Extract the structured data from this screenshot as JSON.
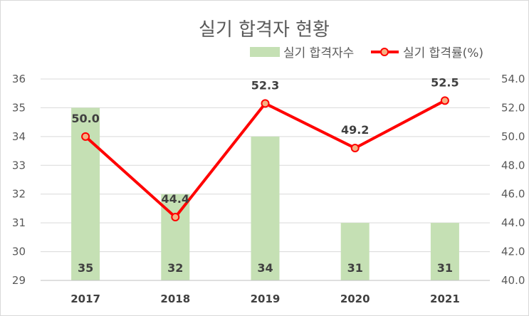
{
  "chart_data": {
    "type": "bar",
    "title": "실기 합격자 현황",
    "categories": [
      "2017",
      "2018",
      "2019",
      "2020",
      "2021"
    ],
    "series": [
      {
        "name": "실기 합격자수",
        "type": "bar",
        "axis": "left",
        "values": [
          35,
          32,
          34,
          31,
          31
        ],
        "color": "#c5e0b4"
      },
      {
        "name": "실기 합격률(%)",
        "type": "line",
        "axis": "right",
        "values": [
          50.0,
          44.4,
          52.3,
          49.2,
          52.5
        ],
        "color": "#ff0000",
        "marker_color": "#f4b183"
      }
    ],
    "y_left": {
      "min": 29,
      "max": 36,
      "ticks": [
        "29",
        "30",
        "31",
        "32",
        "33",
        "34",
        "35",
        "36"
      ]
    },
    "y_right": {
      "min": 40,
      "max": 54,
      "ticks": [
        "40.0",
        "42.0",
        "44.0",
        "46.0",
        "48.0",
        "50.0",
        "52.0",
        "54.0"
      ]
    },
    "bar_labels": [
      "35",
      "32",
      "34",
      "31",
      "31"
    ],
    "line_labels": [
      "50.0",
      "44.4",
      "52.3",
      "49.2",
      "52.5"
    ],
    "grid": true,
    "legend_position": "top-right"
  }
}
